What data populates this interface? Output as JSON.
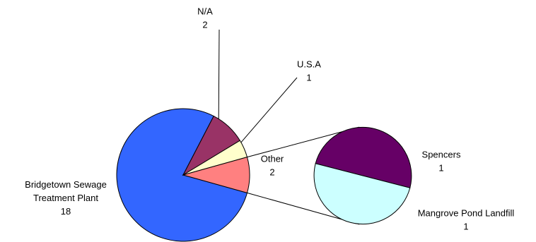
{
  "chart_data": {
    "type": "pie",
    "subtype": "pie-of-pie",
    "slices": [
      {
        "name": "Bridgetown Sewage Treatment Plant",
        "name_lines": [
          "Bridgetown Sewage",
          "Treatment Plant"
        ],
        "value": 18,
        "color": "#3366ff"
      },
      {
        "name": "N/A",
        "name_lines": [
          "N/A"
        ],
        "value": 2,
        "color": "#993366"
      },
      {
        "name": "U.S.A",
        "name_lines": [
          "U.S.A"
        ],
        "value": 1,
        "color": "#ffffcc"
      },
      {
        "name": "Other",
        "name_lines": [
          "Other"
        ],
        "value": 2,
        "color": "#ff8080"
      }
    ],
    "secondary": {
      "parent": "Other",
      "slices": [
        {
          "name": "Spencers",
          "name_lines": [
            "Spencers"
          ],
          "value": 1,
          "color": "#660066"
        },
        {
          "name": "Mangrove Pond  Landfill",
          "name_lines": [
            "Mangrove Pond  Landfill"
          ],
          "value": 1,
          "color": "#ccffff"
        }
      ]
    },
    "legend": "none"
  }
}
